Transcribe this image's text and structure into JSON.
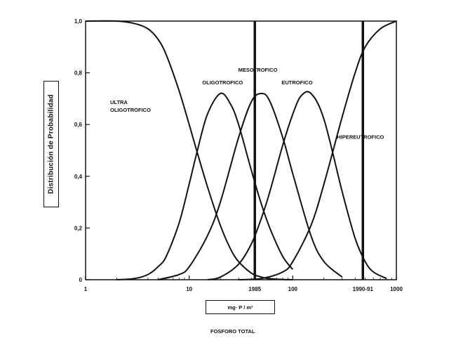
{
  "chart_data": {
    "type": "line",
    "title": "",
    "xlabel": "FOSFORO TOTAL",
    "x_unit_label": "mg· P / m³",
    "ylabel": "Distribución de Probabilidad",
    "x_scale": "log",
    "xlim": [
      1,
      1000
    ],
    "ylim": [
      0,
      1.0
    ],
    "x_ticks": [
      {
        "value": 1,
        "label": "1"
      },
      {
        "value": 10,
        "label": "10"
      },
      {
        "value": 100,
        "label": "100"
      },
      {
        "value": 1000,
        "label": "1000"
      }
    ],
    "y_ticks": [
      {
        "value": 0,
        "label": "0"
      },
      {
        "value": 0.2,
        "label": "0,2"
      },
      {
        "value": 0.4,
        "label": "0,4"
      },
      {
        "value": 0.6,
        "label": "0,6"
      },
      {
        "value": 0.8,
        "label": "0,8"
      },
      {
        "value": 1.0,
        "label": "1,0"
      }
    ],
    "grid": false,
    "series": [
      {
        "name": "ULTRA OLIGOTROFICO",
        "x": [
          1,
          2,
          3,
          4,
          5,
          6,
          8,
          10,
          12,
          15,
          20,
          25,
          30,
          40,
          50,
          60,
          80,
          100
        ],
        "y": [
          1.0,
          1.0,
          0.99,
          0.97,
          0.93,
          0.87,
          0.73,
          0.6,
          0.49,
          0.36,
          0.21,
          0.12,
          0.07,
          0.025,
          0.01,
          0.004,
          0.001,
          0
        ]
      },
      {
        "name": "OLIGOTROFICO",
        "x": [
          2,
          3,
          4,
          5,
          6,
          8,
          10,
          12,
          15,
          20,
          25,
          30,
          40,
          50,
          60,
          80,
          100
        ],
        "y": [
          0,
          0.005,
          0.02,
          0.05,
          0.09,
          0.22,
          0.37,
          0.5,
          0.64,
          0.72,
          0.68,
          0.6,
          0.42,
          0.29,
          0.2,
          0.09,
          0.04
        ]
      },
      {
        "name": "MESOTROFICO",
        "x": [
          5,
          8,
          10,
          15,
          20,
          30,
          40,
          50,
          60,
          80,
          100,
          150,
          200,
          300
        ],
        "y": [
          0,
          0.02,
          0.05,
          0.17,
          0.3,
          0.55,
          0.69,
          0.72,
          0.69,
          0.55,
          0.41,
          0.17,
          0.07,
          0.01
        ]
      },
      {
        "name": "EUTROFICO",
        "x": [
          15,
          20,
          30,
          40,
          50,
          60,
          80,
          100,
          120,
          150,
          200,
          300,
          400,
          500,
          600,
          800
        ],
        "y": [
          0,
          0.01,
          0.06,
          0.14,
          0.24,
          0.34,
          0.52,
          0.64,
          0.71,
          0.72,
          0.62,
          0.34,
          0.16,
          0.07,
          0.03,
          0.005
        ]
      },
      {
        "name": "HIPEREUTROFICO",
        "x": [
          30,
          50,
          80,
          100,
          150,
          200,
          300,
          400,
          500,
          700,
          1000
        ],
        "y": [
          0,
          0.005,
          0.03,
          0.07,
          0.21,
          0.37,
          0.63,
          0.8,
          0.9,
          0.97,
          1.0
        ]
      }
    ],
    "labels": [
      {
        "text": "ULTRA",
        "x": 2.5,
        "y": 0.68
      },
      {
        "text": "OLIGOTROFICO",
        "x": 2.5,
        "y": 0.65
      },
      {
        "text": "OLIGOTROFICO",
        "x": 21,
        "y": 0.755
      },
      {
        "text": "MESOTROFICO",
        "x": 46,
        "y": 0.805
      },
      {
        "text": "EUTROFICO",
        "x": 110,
        "y": 0.755
      },
      {
        "text": "HIPEREUTROFICO",
        "x": 450,
        "y": 0.545
      }
    ],
    "markers": [
      {
        "label": "1985",
        "x": 43
      },
      {
        "label": "1990-91",
        "x": 475
      }
    ]
  }
}
